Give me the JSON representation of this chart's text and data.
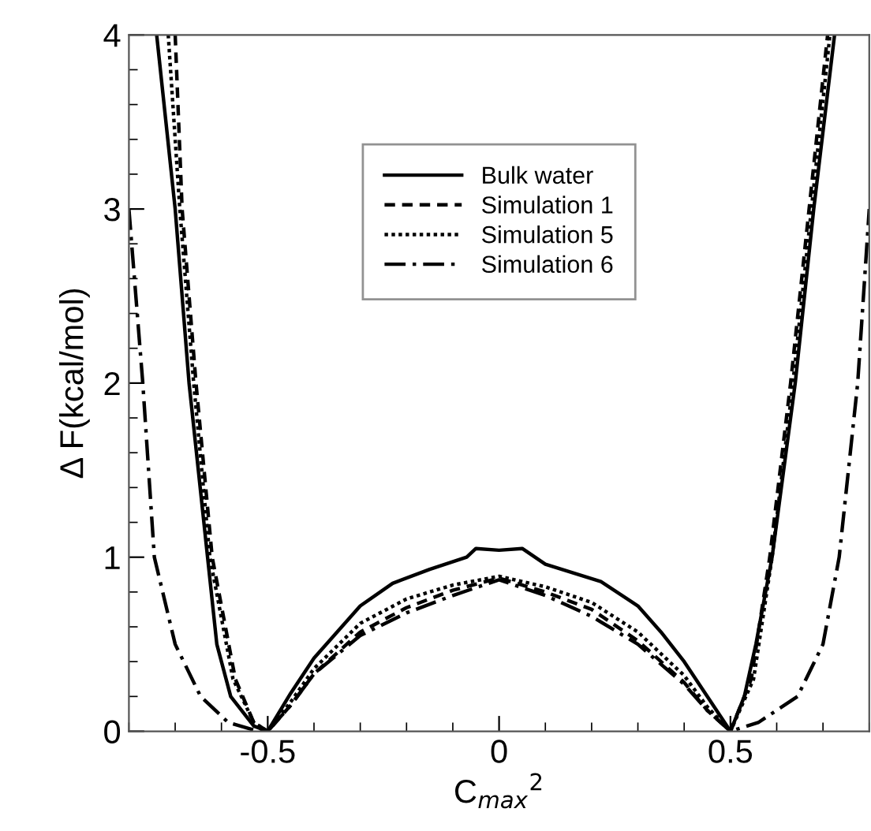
{
  "chart_data": {
    "type": "line",
    "xlabel": "C$_{max}$$^{2}$",
    "ylabel": "Δ F(kcal/mol)",
    "xlim": [
      -0.8,
      0.8
    ],
    "ylim": [
      0,
      4
    ],
    "xticks": [
      -0.5,
      0,
      0.5
    ],
    "yticks": [
      0,
      1,
      2,
      3,
      4
    ],
    "grid": false,
    "legend": "top",
    "marker": "none",
    "series": [
      {
        "name": "Bulk water",
        "color": "#000000",
        "line_style": "solid",
        "x": [
          -0.74,
          -0.7,
          -0.67,
          -0.63,
          -0.61,
          -0.58,
          -0.53,
          -0.5,
          -0.45,
          -0.4,
          -0.36,
          -0.3,
          -0.23,
          -0.15,
          -0.07,
          -0.05,
          0,
          0.05,
          0.1,
          0.22,
          0.3,
          0.35,
          0.4,
          0.455,
          0.5,
          0.53,
          0.555,
          0.59,
          0.64,
          0.68,
          0.725
        ],
        "values": [
          4,
          3,
          2,
          1,
          0.5,
          0.2,
          0.03,
          0,
          0.22,
          0.42,
          0.54,
          0.72,
          0.85,
          0.93,
          1.0,
          1.05,
          1.04,
          1.05,
          0.96,
          0.86,
          0.72,
          0.57,
          0.4,
          0.18,
          0,
          0.2,
          0.5,
          1,
          2,
          3,
          4
        ]
      },
      {
        "name": "Simulation 1",
        "color": "#000000",
        "line_style": "dashed",
        "x": [
          -0.7,
          -0.685,
          -0.655,
          -0.62,
          -0.57,
          -0.53,
          -0.5,
          -0.45,
          -0.4,
          -0.3,
          -0.2,
          -0.1,
          0,
          0.1,
          0.2,
          0.3,
          0.4,
          0.45,
          0.5,
          0.545,
          0.585,
          0.63,
          0.67,
          0.71
        ],
        "values": [
          4,
          3,
          2,
          1,
          0.3,
          0.05,
          0,
          0.15,
          0.33,
          0.57,
          0.71,
          0.81,
          0.88,
          0.8,
          0.7,
          0.52,
          0.28,
          0.12,
          0,
          0.3,
          1,
          2,
          3,
          4
        ]
      },
      {
        "name": "Simulation 5",
        "color": "#000000",
        "line_style": "dotted",
        "x": [
          -0.715,
          -0.69,
          -0.66,
          -0.625,
          -0.575,
          -0.53,
          -0.5,
          -0.45,
          -0.4,
          -0.3,
          -0.2,
          -0.1,
          0,
          0.1,
          0.2,
          0.3,
          0.4,
          0.45,
          0.5,
          0.55,
          0.59,
          0.635,
          0.675,
          0.715
        ],
        "values": [
          4,
          3,
          2,
          1,
          0.3,
          0.05,
          0,
          0.17,
          0.36,
          0.62,
          0.76,
          0.84,
          0.89,
          0.83,
          0.74,
          0.57,
          0.32,
          0.14,
          0,
          0.3,
          1,
          2,
          3,
          4
        ]
      },
      {
        "name": "Simulation 6",
        "color": "#000000",
        "line_style": "dashdot",
        "x": [
          -0.8,
          -0.77,
          -0.745,
          -0.7,
          -0.645,
          -0.585,
          -0.52,
          -0.5,
          -0.45,
          -0.4,
          -0.3,
          -0.2,
          -0.1,
          0,
          0.1,
          0.2,
          0.3,
          0.4,
          0.45,
          0.5,
          0.56,
          0.645,
          0.7,
          0.735,
          0.775,
          0.8
        ],
        "values": [
          3,
          2,
          1,
          0.5,
          0.2,
          0.05,
          0,
          0,
          0.15,
          0.33,
          0.55,
          0.68,
          0.78,
          0.87,
          0.78,
          0.66,
          0.5,
          0.27,
          0.12,
          0,
          0.05,
          0.2,
          0.5,
          1,
          2,
          3
        ]
      }
    ]
  }
}
